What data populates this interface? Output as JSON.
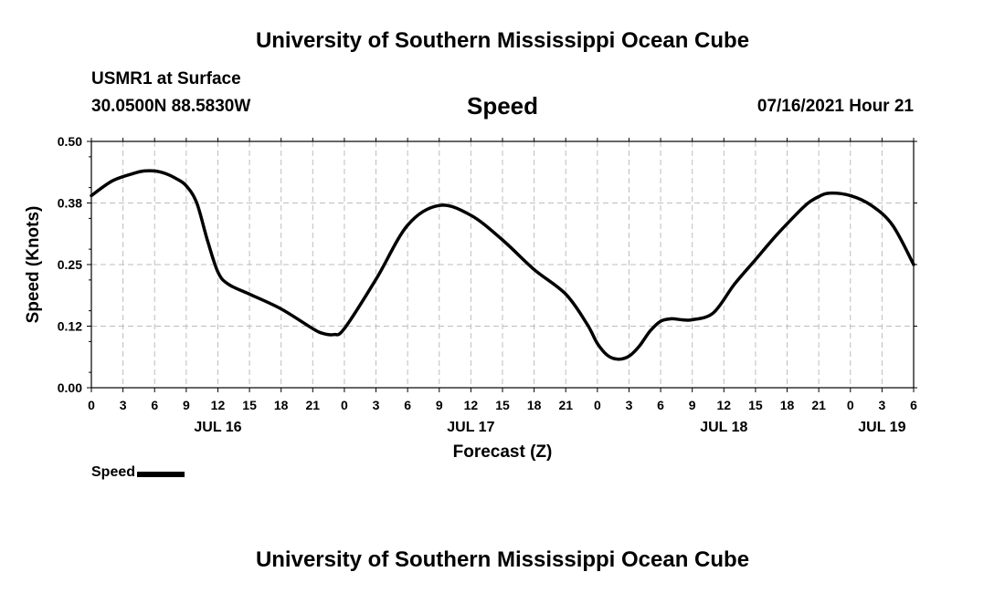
{
  "header": {
    "title": "University of Southern Mississippi Ocean Cube",
    "station": "USMR1 at Surface",
    "coords": "30.0500N  88.5830W",
    "plot_title": "Speed",
    "datetime": "07/16/2021 Hour 21"
  },
  "footer": {
    "title": "University of Southern Mississippi Ocean Cube"
  },
  "chart_data": {
    "type": "line",
    "title": "Speed",
    "xlabel": "Forecast (Z)",
    "ylabel": "Speed (Knots)",
    "ylim": [
      0,
      0.5
    ],
    "yticks": [
      "0.00",
      "0.12",
      "0.25",
      "0.38",
      "0.50"
    ],
    "xlim": [
      0,
      78
    ],
    "xtick_labels": [
      "0",
      "3",
      "6",
      "9",
      "12",
      "15",
      "18",
      "21",
      "0",
      "3",
      "6",
      "9",
      "12",
      "15",
      "18",
      "21",
      "0",
      "3",
      "6",
      "9",
      "12",
      "15",
      "18",
      "21",
      "0",
      "3",
      "6"
    ],
    "day_labels": [
      {
        "label": "JUL 16",
        "hour": 12
      },
      {
        "label": "JUL 17",
        "hour": 36
      },
      {
        "label": "JUL 18",
        "hour": 60
      },
      {
        "label": "JUL 19",
        "hour": 75
      }
    ],
    "grid": true,
    "legend": {
      "position": "bottom-left"
    },
    "series": [
      {
        "name": "Speed",
        "color": "#000000",
        "x": [
          0,
          2,
          4,
          5,
          6,
          7,
          8,
          9,
          10,
          11,
          12,
          13,
          15,
          18,
          21,
          22,
          23,
          24,
          27,
          30,
          33,
          36,
          39,
          42,
          45,
          47,
          48,
          49,
          50,
          51,
          52,
          53,
          54,
          55,
          56,
          57,
          59,
          61,
          63,
          65,
          67,
          68,
          69,
          70,
          72,
          74,
          76,
          78
        ],
        "y": [
          0.39,
          0.42,
          0.435,
          0.44,
          0.44,
          0.435,
          0.425,
          0.41,
          0.375,
          0.3,
          0.235,
          0.21,
          0.19,
          0.16,
          0.12,
          0.11,
          0.108,
          0.12,
          0.22,
          0.33,
          0.37,
          0.35,
          0.3,
          0.24,
          0.19,
          0.13,
          0.09,
          0.065,
          0.058,
          0.064,
          0.085,
          0.115,
          0.135,
          0.14,
          0.138,
          0.138,
          0.152,
          0.21,
          0.26,
          0.31,
          0.355,
          0.375,
          0.388,
          0.395,
          0.39,
          0.37,
          0.33,
          0.25
        ]
      }
    ]
  }
}
